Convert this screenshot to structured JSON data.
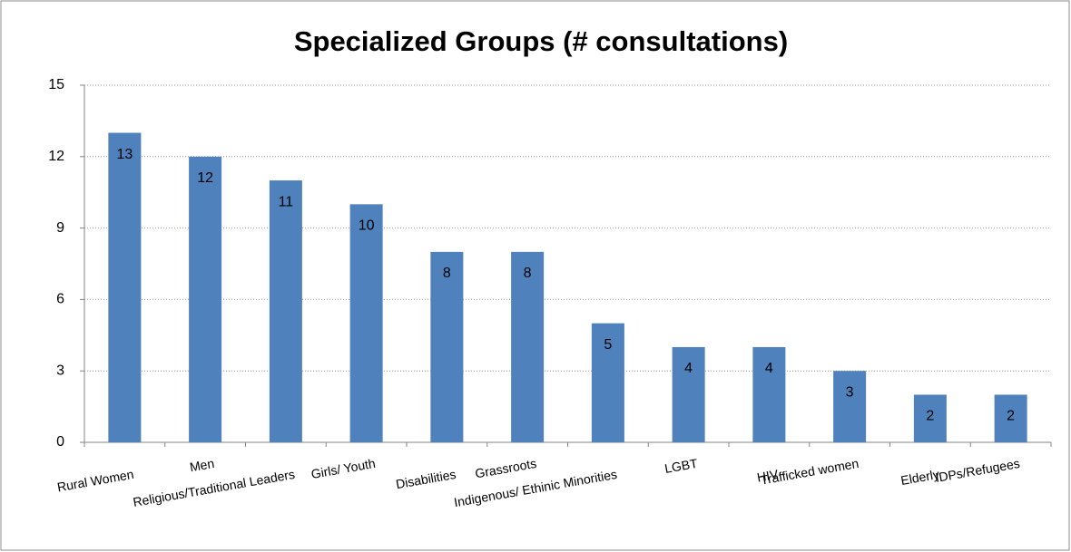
{
  "chart_data": {
    "type": "bar",
    "title": "Specialized Groups (# consultations)",
    "categories": [
      "Rural Women",
      "Men",
      "Religious/Traditional Leaders",
      "Girls/ Youth",
      "Disabilities",
      "Grassroots",
      "Indigenous/ Ethinic Minorities",
      "LGBT",
      "HIV",
      "Trafficked women",
      "Elderly",
      "IDPs/Refugees"
    ],
    "values": [
      13,
      12,
      11,
      10,
      8,
      8,
      5,
      4,
      4,
      3,
      2,
      2
    ],
    "color": "#4f81bd",
    "ylim": [
      0,
      15
    ],
    "yticks": [
      0,
      3,
      6,
      9,
      12,
      15
    ],
    "grid": true
  }
}
